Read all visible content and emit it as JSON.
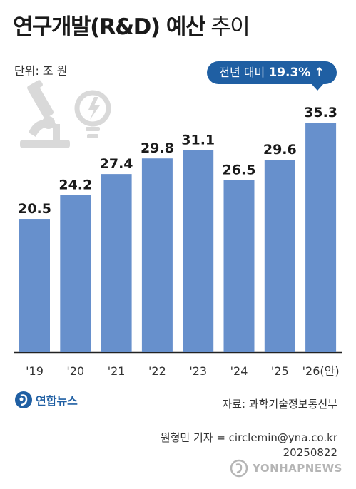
{
  "header": {
    "title_bold": "연구개발(R&D) 예산",
    "title_light": " 추이",
    "unit": "단위: 조 원"
  },
  "callout": {
    "prefix": "전년 대비 ",
    "value": "19.3%",
    "arrow": "↑"
  },
  "chart_data": {
    "type": "bar",
    "categories": [
      "'19",
      "'20",
      "'21",
      "'22",
      "'23",
      "'24",
      "'25",
      "'26(안)"
    ],
    "values": [
      20.5,
      24.2,
      27.4,
      29.8,
      31.1,
      26.5,
      29.6,
      35.3
    ],
    "value_labels": [
      "20.5",
      "24.2",
      "27.4",
      "29.8",
      "31.1",
      "26.5",
      "29.6",
      "35.3"
    ],
    "unit": "조 원",
    "ylim": [
      0,
      40
    ],
    "grid": false,
    "bar_color": "#6790cc"
  },
  "footer": {
    "logo_text": "연합뉴스",
    "source": "자료: 과학기술정보통신부",
    "reporter": "원형민 기자 = circlemin@yna.co.kr",
    "date": "20250822",
    "watermark": "YONHAPNEWS"
  },
  "colors": {
    "accent": "#1f5fa3",
    "bar": "#6790cc",
    "icon": "#d9d9d9"
  },
  "icons": [
    "microscope-icon",
    "lightbulb-icon"
  ]
}
